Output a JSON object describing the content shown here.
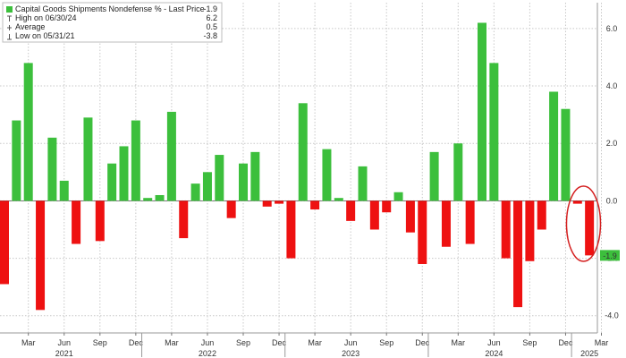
{
  "chart_data": {
    "type": "bar",
    "title": "",
    "xlabel": "",
    "ylabel": "",
    "ylim": [
      -4.6,
      6.9
    ],
    "y_ticks": [
      6.0,
      4.0,
      2.0,
      0.0,
      -2.0,
      -4.0
    ],
    "y_tick_labels": [
      "6.0",
      "4.0",
      "2.0",
      "0.0",
      "-2.0",
      "-4.0"
    ],
    "y_axis_position": "right",
    "grid": true,
    "legend_position": "top-left",
    "colors": {
      "positive": "#3cbf3c",
      "negative": "#ee1111",
      "grid": "#c8c8c8",
      "highlight": "#d42020",
      "last_label_bg": "#3cbf3c"
    },
    "series": [
      {
        "name": "Capital Goods Shipments Nondefense % - Last Price",
        "periods": [
          "2021-01",
          "2021-02",
          "2021-03",
          "2021-04",
          "2021-05",
          "2021-06",
          "2021-07",
          "2021-08",
          "2021-09",
          "2021-10",
          "2021-11",
          "2021-12",
          "2022-01",
          "2022-02",
          "2022-03",
          "2022-04",
          "2022-05",
          "2022-06",
          "2022-07",
          "2022-08",
          "2022-09",
          "2022-10",
          "2022-11",
          "2022-12",
          "2023-01",
          "2023-02",
          "2023-03",
          "2023-04",
          "2023-05",
          "2023-06",
          "2023-07",
          "2023-08",
          "2023-09",
          "2023-10",
          "2023-11",
          "2023-12",
          "2024-01",
          "2024-02",
          "2024-03",
          "2024-04",
          "2024-05",
          "2024-06",
          "2024-07",
          "2024-08",
          "2024-09",
          "2024-10",
          "2024-11",
          "2024-12",
          "2025-01",
          "2025-02",
          "2025-03"
        ],
        "values": [
          -2.9,
          2.8,
          4.8,
          -3.8,
          2.2,
          0.7,
          -1.5,
          2.9,
          -1.4,
          1.3,
          1.9,
          2.8,
          0.1,
          0.2,
          3.1,
          -1.3,
          0.6,
          1.0,
          1.6,
          -0.6,
          1.3,
          1.7,
          -0.2,
          -0.1,
          -2.0,
          3.4,
          -0.3,
          1.8,
          0.1,
          -0.7,
          1.2,
          -1.0,
          -0.4,
          0.3,
          -1.1,
          -2.2,
          1.7,
          -1.6,
          2.0,
          -1.5,
          6.2,
          4.8,
          -2.0,
          -3.7,
          -2.1,
          -1.0,
          3.8,
          3.2,
          -0.1,
          -1.9,
          null
        ]
      }
    ],
    "month_tick_labels": [
      "Mar",
      "Jun",
      "Sep",
      "Dec",
      "Mar",
      "Jun",
      "Sep",
      "Dec",
      "Mar",
      "Jun",
      "Sep",
      "Dec",
      "Mar",
      "Jun",
      "Sep",
      "Dec",
      "Mar"
    ],
    "month_tick_periods": [
      "2021-03",
      "2021-06",
      "2021-09",
      "2021-12",
      "2022-03",
      "2022-06",
      "2022-09",
      "2022-12",
      "2023-03",
      "2023-06",
      "2023-09",
      "2023-12",
      "2024-03",
      "2024-06",
      "2024-09",
      "2024-12",
      "2025-03"
    ],
    "year_labels": [
      "2021",
      "2022",
      "2023",
      "2024",
      "2025"
    ],
    "year_label_periods": [
      "2021-06",
      "2022-06",
      "2023-06",
      "2024-06",
      "2025-02"
    ],
    "year_boundaries": [
      "2021-12",
      "2022-12",
      "2023-12",
      "2024-12"
    ],
    "legend": {
      "entries": [
        {
          "marker": "square",
          "text": "Capital Goods Shipments Nondefense % - Last Price",
          "value": "-1.9"
        },
        {
          "marker": "high",
          "text": "High on 06/30/24",
          "value": "6.2"
        },
        {
          "marker": "avg",
          "text": "Average",
          "value": "0.5"
        },
        {
          "marker": "low",
          "text": "Low on 05/31/21",
          "value": "-3.8"
        }
      ]
    },
    "last_value_label": "-1.9",
    "last_value": -1.9
  }
}
